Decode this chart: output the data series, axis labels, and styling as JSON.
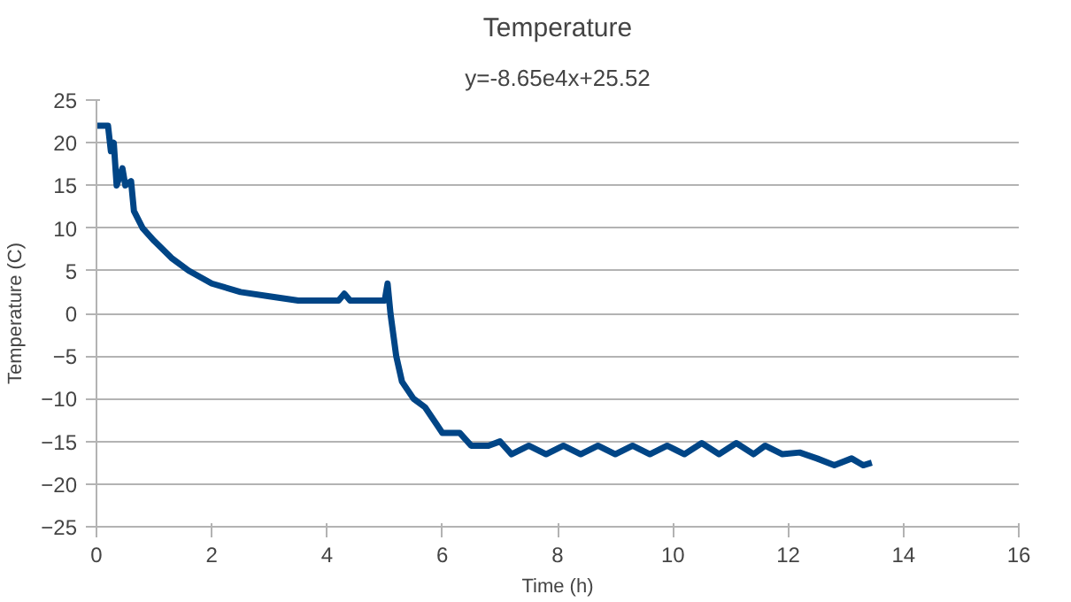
{
  "chart_data": {
    "type": "line",
    "title": "Temperature",
    "subtitle": "y=-8.65e4x+25.52",
    "xlabel": "Time (h)",
    "ylabel": "Temperature (C)",
    "xlim": [
      0,
      16
    ],
    "xticks": [
      0,
      2,
      4,
      6,
      8,
      10,
      12,
      14,
      16
    ],
    "ylim": [
      -25,
      25
    ],
    "yticks": [
      -25,
      -20,
      -15,
      -10,
      -5,
      0,
      5,
      10,
      15,
      20,
      25
    ],
    "grid": "y",
    "marker": "none",
    "line_style": "solid",
    "series": [
      {
        "color": "#004586",
        "x": [
          0,
          0.2,
          0.25,
          0.3,
          0.35,
          0.45,
          0.5,
          0.6,
          0.65,
          0.8,
          1,
          1.3,
          1.6,
          2,
          2.5,
          3,
          3.5,
          4,
          4.2,
          4.3,
          4.4,
          5,
          5.05,
          5.1,
          5.2,
          5.3,
          5.5,
          5.7,
          5.9,
          6.0,
          6.3,
          6.5,
          6.8,
          7.0,
          7.2,
          7.5,
          7.8,
          8.1,
          8.4,
          8.7,
          9.0,
          9.3,
          9.6,
          9.9,
          10.2,
          10.5,
          10.8,
          11.1,
          11.4,
          11.6,
          11.9,
          12.2,
          12.5,
          12.8,
          13.1,
          13.3,
          13.45
        ],
        "values": [
          22,
          22,
          19,
          20,
          15,
          17,
          15,
          15.5,
          12,
          10,
          8.5,
          6.5,
          5,
          3.5,
          2.5,
          2,
          1.5,
          1.5,
          1.5,
          2.3,
          1.5,
          1.5,
          3.5,
          0,
          -5,
          -8,
          -10,
          -11,
          -13,
          -14,
          -14,
          -15.5,
          -15.5,
          -15,
          -16.5,
          -15.5,
          -16.5,
          -15.5,
          -16.5,
          -15.5,
          -16.5,
          -15.5,
          -16.5,
          -15.5,
          -16.5,
          -15.2,
          -16.5,
          -15.2,
          -16.5,
          -15.5,
          -16.5,
          -16.3,
          -17,
          -17.8,
          -17,
          -17.8,
          -17.5
        ]
      }
    ]
  }
}
